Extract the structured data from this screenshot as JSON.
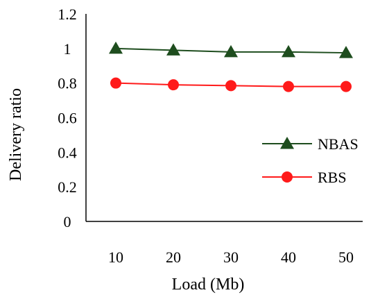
{
  "chart_data": {
    "type": "line",
    "title": "",
    "xlabel": "Load (Mb)",
    "ylabel": "Delivery ratio",
    "categories": [
      "10",
      "20",
      "30",
      "40",
      "50"
    ],
    "ylim": [
      0,
      1.2
    ],
    "yticks": [
      "0",
      "0.2",
      "0.4",
      "0.6",
      "0.8",
      "1",
      "1.2"
    ],
    "grid": false,
    "legend_position": "right",
    "series": [
      {
        "name": "NBAS",
        "values": [
          1.0,
          0.99,
          0.98,
          0.98,
          0.975
        ],
        "color": "#1e4d1e",
        "marker": "triangle"
      },
      {
        "name": "RBS",
        "values": [
          0.8,
          0.79,
          0.785,
          0.78,
          0.78
        ],
        "color": "#ff1a1a",
        "marker": "circle"
      }
    ]
  }
}
